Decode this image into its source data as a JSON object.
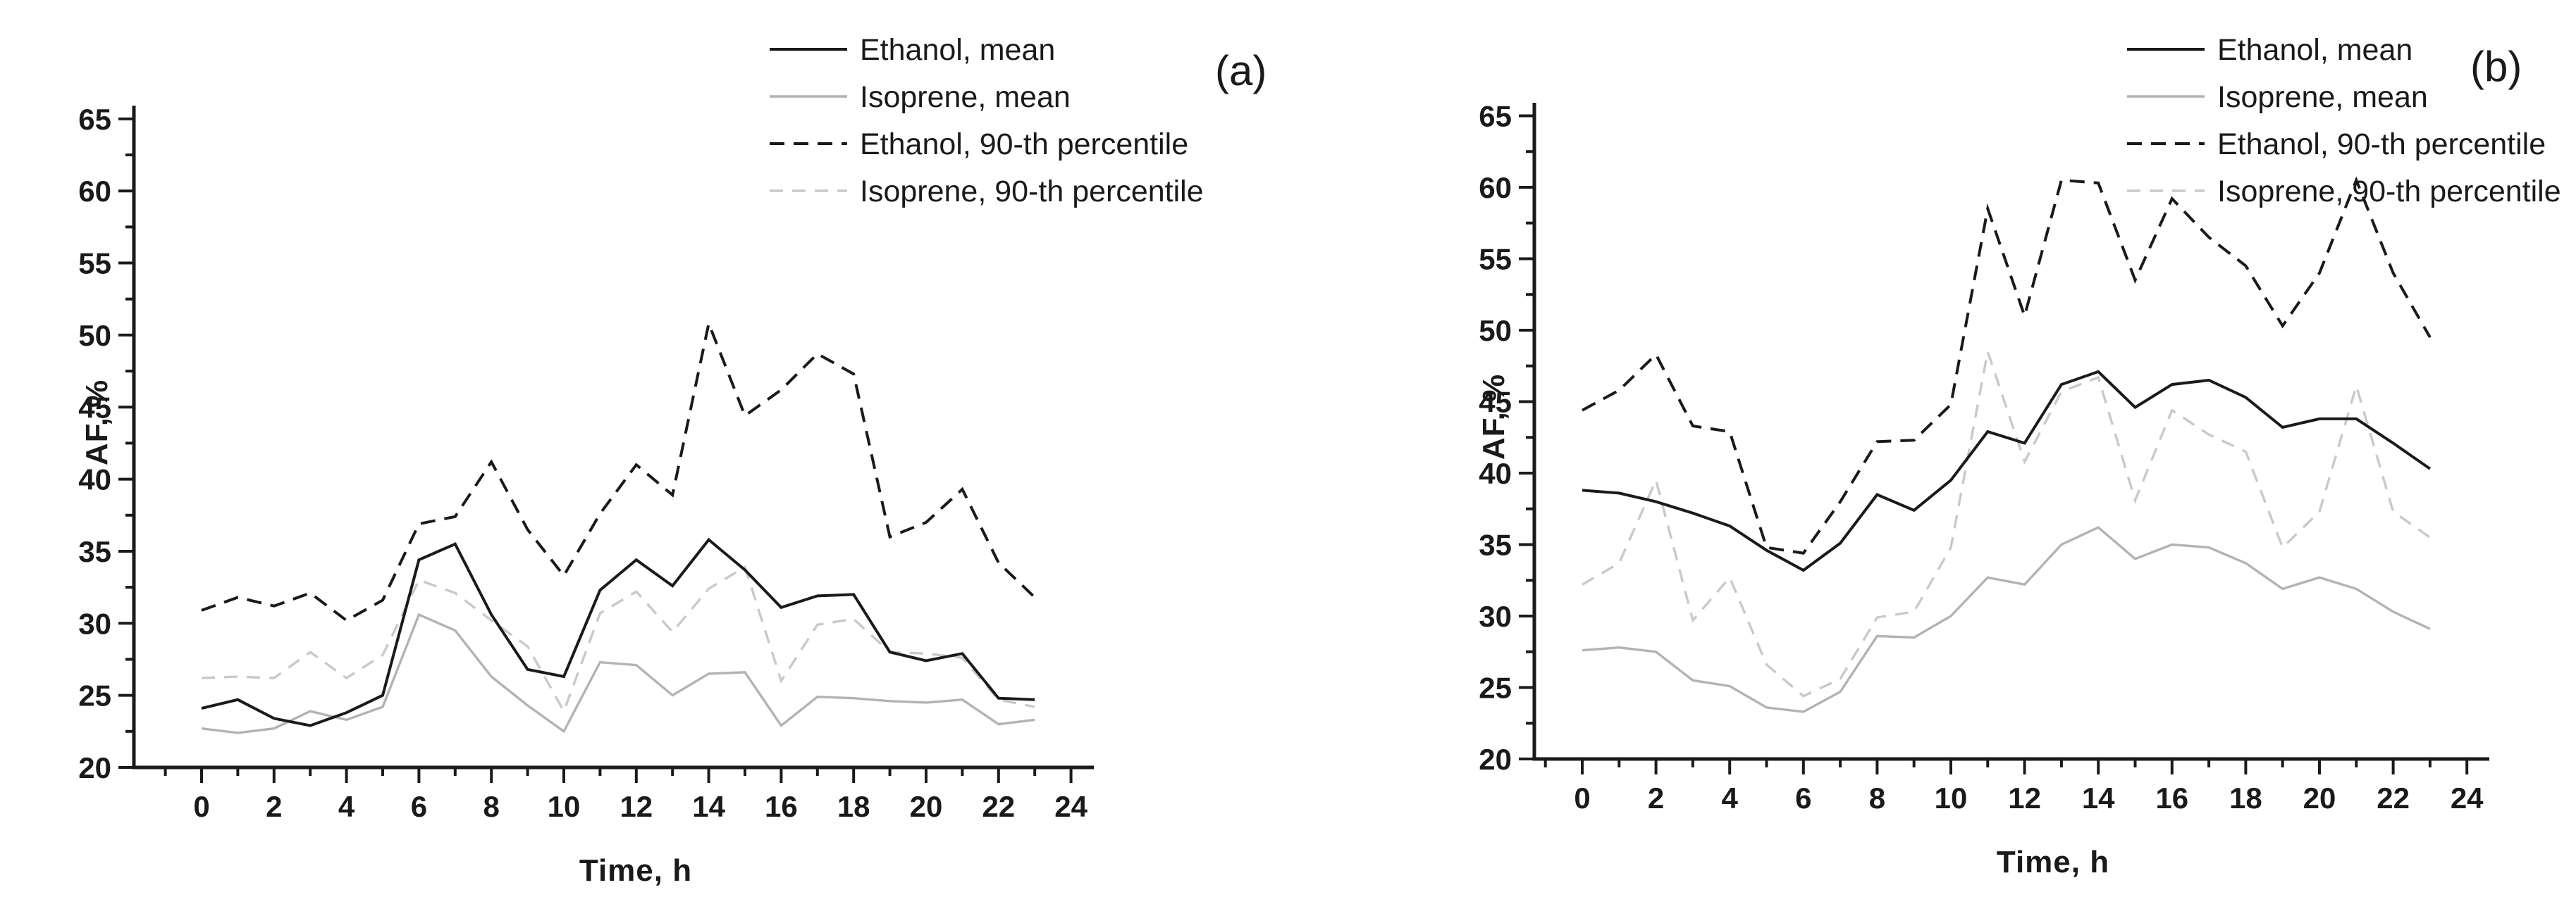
{
  "chart_data": [
    {
      "type": "line",
      "panel_label": "(a)",
      "xlabel": "Time, h",
      "ylabel": "AF, %",
      "x": [
        0,
        1,
        2,
        3,
        4,
        5,
        6,
        7,
        8,
        9,
        10,
        11,
        12,
        13,
        14,
        15,
        16,
        17,
        18,
        19,
        20,
        21,
        22,
        23
      ],
      "xlim": [
        -1,
        25
      ],
      "ylim": [
        20,
        65
      ],
      "x_tick_labels": [
        "0",
        "2",
        "4",
        "6",
        "8",
        "10",
        "12",
        "14",
        "16",
        "18",
        "20",
        "22",
        "24"
      ],
      "y_tick_labels": [
        "20",
        "25",
        "30",
        "35",
        "40",
        "45",
        "50",
        "55",
        "60",
        "65"
      ],
      "grid": false,
      "legend_position": "above-top-right",
      "series": [
        {
          "name": "Ethanol, mean",
          "style": "solid",
          "color_key": "black",
          "values": [
            24.1,
            24.7,
            23.4,
            22.9,
            23.8,
            25.0,
            34.4,
            35.5,
            30.6,
            26.8,
            26.3,
            32.3,
            34.4,
            32.6,
            35.8,
            33.7,
            31.1,
            31.9,
            32.0,
            28.0,
            27.4,
            27.9,
            24.8,
            24.7
          ]
        },
        {
          "name": "Isoprene, mean",
          "style": "solid",
          "color_key": "gray",
          "values": [
            22.7,
            22.4,
            22.7,
            23.9,
            23.3,
            24.2,
            30.6,
            29.5,
            26.3,
            24.3,
            22.5,
            27.3,
            27.1,
            25.0,
            26.5,
            26.6,
            22.9,
            24.9,
            24.8,
            24.6,
            24.5,
            24.7,
            23.0,
            23.3
          ]
        },
        {
          "name": "Ethanol, 90-th percentile",
          "style": "dashed",
          "color_key": "black",
          "values": [
            30.9,
            31.8,
            31.2,
            32.1,
            30.2,
            31.6,
            36.9,
            37.4,
            41.2,
            36.5,
            33.3,
            37.6,
            41.0,
            38.9,
            50.8,
            44.4,
            46.2,
            48.7,
            47.3,
            36.0,
            37.0,
            39.3,
            34.2,
            31.8
          ]
        },
        {
          "name": "Isoprene, 90-th percentile",
          "style": "dashed",
          "color_key": "lightgray",
          "values": [
            26.2,
            26.3,
            26.2,
            28.0,
            26.2,
            27.8,
            33.0,
            32.1,
            30.2,
            28.4,
            23.9,
            30.7,
            32.2,
            29.4,
            32.4,
            33.9,
            26.0,
            29.9,
            30.3,
            28.0,
            27.9,
            27.6,
            24.7,
            24.2
          ]
        }
      ]
    },
    {
      "type": "line",
      "panel_label": "(b)",
      "xlabel": "Time, h",
      "ylabel": "AF, %",
      "x": [
        0,
        1,
        2,
        3,
        4,
        5,
        6,
        7,
        8,
        9,
        10,
        11,
        12,
        13,
        14,
        15,
        16,
        17,
        18,
        19,
        20,
        21,
        22,
        23
      ],
      "xlim": [
        -1,
        25
      ],
      "ylim": [
        20,
        65
      ],
      "x_tick_labels": [
        "0",
        "2",
        "4",
        "6",
        "8",
        "10",
        "12",
        "14",
        "16",
        "18",
        "20",
        "22",
        "24"
      ],
      "y_tick_labels": [
        "20",
        "25",
        "30",
        "35",
        "40",
        "45",
        "50",
        "55",
        "60",
        "65"
      ],
      "grid": false,
      "legend_position": "above-top-right",
      "series": [
        {
          "name": "Ethanol, mean",
          "style": "solid",
          "color_key": "black",
          "values": [
            38.8,
            38.6,
            38.0,
            37.2,
            36.3,
            34.6,
            33.2,
            35.1,
            38.5,
            37.4,
            39.5,
            42.9,
            42.1,
            46.2,
            47.1,
            44.6,
            46.2,
            46.5,
            45.3,
            43.2,
            43.8,
            43.8,
            42.1,
            40.3
          ]
        },
        {
          "name": "Isoprene, mean",
          "style": "solid",
          "color_key": "gray",
          "values": [
            27.6,
            27.8,
            27.5,
            25.5,
            25.1,
            23.6,
            23.3,
            24.7,
            28.6,
            28.5,
            30.0,
            32.7,
            32.2,
            35.0,
            36.2,
            34.0,
            35.0,
            34.8,
            33.7,
            31.9,
            32.7,
            31.9,
            30.3,
            29.1
          ]
        },
        {
          "name": "Ethanol, 90-th percentile",
          "style": "dashed",
          "color_key": "black",
          "values": [
            44.4,
            45.8,
            48.3,
            43.3,
            42.9,
            34.8,
            34.4,
            38.0,
            42.2,
            42.3,
            44.8,
            58.5,
            51.0,
            60.5,
            60.3,
            53.5,
            59.2,
            56.5,
            54.5,
            50.3,
            54.0,
            60.5,
            54.0,
            49.5
          ]
        },
        {
          "name": "Isoprene, 90-th percentile",
          "style": "dashed",
          "color_key": "lightgray",
          "values": [
            32.2,
            33.7,
            39.5,
            29.7,
            32.7,
            26.6,
            24.4,
            25.6,
            29.9,
            30.3,
            34.8,
            48.5,
            40.8,
            45.7,
            46.7,
            38.1,
            44.4,
            42.7,
            41.5,
            34.8,
            37.3,
            46.1,
            37.3,
            35.5
          ]
        }
      ]
    }
  ],
  "colors": {
    "black": "#1a1a1a",
    "gray": "#b3b3b3",
    "lightgray": "#c9c9c9",
    "axis": "#1a1a1a",
    "background": "#ffffff"
  }
}
